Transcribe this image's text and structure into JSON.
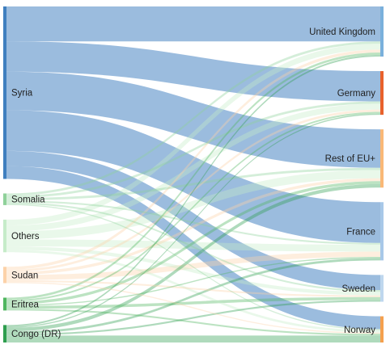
{
  "chart_data": {
    "type": "sankey",
    "title": "",
    "sources": [
      {
        "name": "Syria",
        "color": "#3f7fbf"
      },
      {
        "name": "Somalia",
        "color": "#8fd19a"
      },
      {
        "name": "Others",
        "color": "#c6ecc9"
      },
      {
        "name": "Sudan",
        "color": "#fcd2a9"
      },
      {
        "name": "Eritrea",
        "color": "#4fb65f"
      },
      {
        "name": "Congo (DR)",
        "color": "#2e9e4e"
      }
    ],
    "targets": [
      {
        "name": "United Kingdom",
        "color": "#7ab0dc"
      },
      {
        "name": "Germany",
        "color": "#e8612c"
      },
      {
        "name": "Rest of EU+",
        "color": "#f9b877"
      },
      {
        "name": "France",
        "color": "#a8c8e8"
      },
      {
        "name": "Sweden",
        "color": "#bfd7ee"
      },
      {
        "name": "Norway",
        "color": "#f5a04e"
      }
    ],
    "flows": [
      {
        "source": "Syria",
        "target": "United Kingdom",
        "value": 30
      },
      {
        "source": "Syria",
        "target": "Germany",
        "value": 26
      },
      {
        "source": "Syria",
        "target": "Rest of EU+",
        "value": 33
      },
      {
        "source": "Syria",
        "target": "France",
        "value": 35
      },
      {
        "source": "Syria",
        "target": "Sweden",
        "value": 13
      },
      {
        "source": "Syria",
        "target": "Norway",
        "value": 11
      },
      {
        "source": "Somalia",
        "target": "United Kingdom",
        "value": 2.0
      },
      {
        "source": "Somalia",
        "target": "Germany",
        "value": 2.0
      },
      {
        "source": "Somalia",
        "target": "Rest of EU+",
        "value": 2.0
      },
      {
        "source": "Somalia",
        "target": "France",
        "value": 1.5
      },
      {
        "source": "Somalia",
        "target": "Sweden",
        "value": 1.5
      },
      {
        "source": "Somalia",
        "target": "Norway",
        "value": 1.0
      },
      {
        "source": "Others",
        "target": "United Kingdom",
        "value": 5
      },
      {
        "source": "Others",
        "target": "Germany",
        "value": 5
      },
      {
        "source": "Others",
        "target": "Rest of EU+",
        "value": 7
      },
      {
        "source": "Others",
        "target": "France",
        "value": 6
      },
      {
        "source": "Others",
        "target": "Sweden",
        "value": 3
      },
      {
        "source": "Others",
        "target": "Norway",
        "value": 2
      },
      {
        "source": "Sudan",
        "target": "United Kingdom",
        "value": 2.5
      },
      {
        "source": "Sudan",
        "target": "Germany",
        "value": 2.0
      },
      {
        "source": "Sudan",
        "target": "Rest of EU+",
        "value": 2.5
      },
      {
        "source": "Sudan",
        "target": "France",
        "value": 4.5
      },
      {
        "source": "Sudan",
        "target": "Sweden",
        "value": 1.5
      },
      {
        "source": "Sudan",
        "target": "Norway",
        "value": 1.0
      },
      {
        "source": "Eritrea",
        "target": "United Kingdom",
        "value": 2.0
      },
      {
        "source": "Eritrea",
        "target": "Germany",
        "value": 1.5
      },
      {
        "source": "Eritrea",
        "target": "Rest of EU+",
        "value": 2.5
      },
      {
        "source": "Eritrea",
        "target": "France",
        "value": 1.0
      },
      {
        "source": "Eritrea",
        "target": "Sweden",
        "value": 2.5
      },
      {
        "source": "Eritrea",
        "target": "Norway",
        "value": 1.5
      },
      {
        "source": "Congo (DR)",
        "target": "United Kingdom",
        "value": 1.5
      },
      {
        "source": "Congo (DR)",
        "target": "Germany",
        "value": 1.0
      },
      {
        "source": "Congo (DR)",
        "target": "Rest of EU+",
        "value": 3.0
      },
      {
        "source": "Congo (DR)",
        "target": "France",
        "value": 2.0
      },
      {
        "source": "Congo (DR)",
        "target": "Sweden",
        "value": 1.5
      },
      {
        "source": "Congo (DR)",
        "target": "Norway",
        "value": 6.0
      }
    ]
  }
}
